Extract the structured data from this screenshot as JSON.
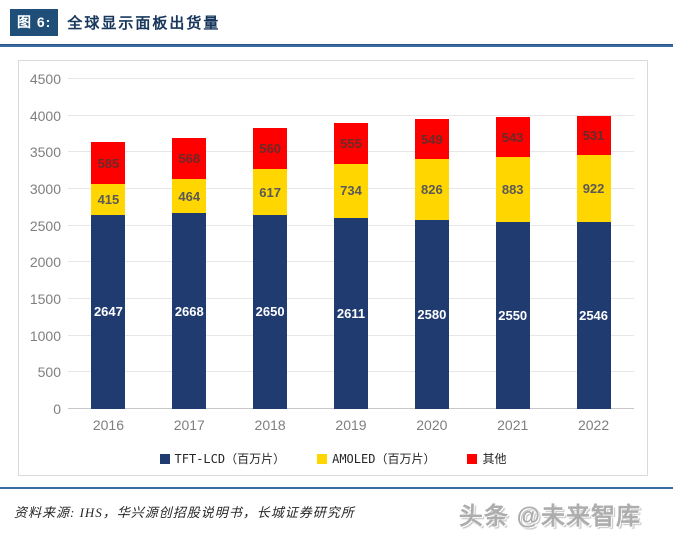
{
  "header": {
    "figure_tag": "图 6:",
    "title": "全球显示面板出货量"
  },
  "chart_data": {
    "type": "bar",
    "stacked": true,
    "title": "全球显示面板出货量",
    "categories": [
      "2016",
      "2017",
      "2018",
      "2019",
      "2020",
      "2021",
      "2022"
    ],
    "series": [
      {
        "name": "TFT-LCD（百万片）",
        "color": "#1F3B70",
        "label_color": "#FFFFFF",
        "values": [
          2647,
          2668,
          2650,
          2611,
          2580,
          2550,
          2546
        ]
      },
      {
        "name": "AMOLED（百万片）",
        "color": "#FFD600",
        "label_color": "#595959",
        "values": [
          415,
          464,
          617,
          734,
          826,
          883,
          922
        ]
      },
      {
        "name": "其他",
        "color": "#FE0000",
        "label_color": "#6B2A2A",
        "values": [
          585,
          568,
          560,
          555,
          549,
          543,
          531
        ]
      }
    ],
    "xlabel": "",
    "ylabel": "",
    "ylim": [
      0,
      4500
    ],
    "yticks": [
      0,
      500,
      1000,
      1500,
      2000,
      2500,
      3000,
      3500,
      4000,
      4500
    ],
    "grid": true,
    "legend_position": "bottom"
  },
  "footer": {
    "source": "资料来源: IHS，华兴源创招股说明书，长城证券研究所",
    "watermark": "头条 @未来智库"
  },
  "colors": {
    "accent_navy": "#17375D",
    "tag_bg": "#1F4E79",
    "rule_blue": "#3A6BA5",
    "grid_line": "#E7E7E7",
    "axis_text": "#7F7F7F",
    "box_border": "#D9D9D9"
  }
}
